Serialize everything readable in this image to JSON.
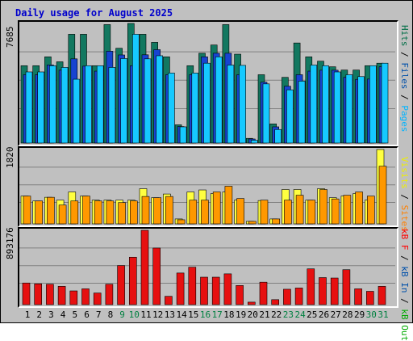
{
  "title": "Daily usage for August 2025",
  "panels": {
    "top": {
      "max_label": "7685",
      "legend": [
        {
          "text": "Hits",
          "color": "#006e46"
        },
        {
          "text": " / ",
          "color": "#000000"
        },
        {
          "text": "Files",
          "color": "#0050aa"
        },
        {
          "text": " / ",
          "color": "#000000"
        },
        {
          "text": "Pages",
          "color": "#00b4ff"
        }
      ]
    },
    "middle": {
      "max_label": "1820",
      "legend": [
        {
          "text": "Visits",
          "color": "#eeee00"
        },
        {
          "text": " / ",
          "color": "#000000"
        },
        {
          "text": "Sites",
          "color": "#ff8000"
        }
      ]
    },
    "bottom": {
      "max_label": "893176",
      "legend": [
        {
          "text": "kB F",
          "color": "#ff0000"
        },
        {
          "text": " / ",
          "color": "#000000"
        },
        {
          "text": "kB In",
          "color": "#0050aa"
        },
        {
          "text": " / ",
          "color": "#000000"
        },
        {
          "text": "kB Out",
          "color": "#00aa00"
        }
      ]
    }
  },
  "colors": {
    "hits": "#127860",
    "files": "#1744d1",
    "pages": "#16c9ff",
    "visits": "#ffff40",
    "sites": "#ff9800",
    "kbytes": "#e61010",
    "weekday_label": "#000000",
    "weekend_label": "#008040"
  },
  "chart_data": {
    "type": "bar",
    "title": "Daily usage for August 2025",
    "categories": [
      "1",
      "2",
      "3",
      "4",
      "5",
      "6",
      "7",
      "8",
      "9",
      "10",
      "11",
      "12",
      "13",
      "14",
      "15",
      "16",
      "17",
      "18",
      "19",
      "20",
      "21",
      "22",
      "23",
      "24",
      "25",
      "26",
      "27",
      "28",
      "29",
      "30",
      "31"
    ],
    "weekend_days": [
      "9",
      "10",
      "16",
      "17",
      "23",
      "24",
      "30",
      "31"
    ],
    "panels": [
      {
        "name": "hits-files-pages",
        "ylim": [
          0,
          7685
        ],
        "series": [
          {
            "name": "Hits",
            "values": [
              4970,
              4970,
              5540,
              5220,
              6990,
              6990,
              4970,
              7610,
              6090,
              7685,
              6990,
              6470,
              5540,
              1170,
              4970,
              5770,
              6300,
              7610,
              5710,
              300,
              4390,
              1230,
              4220,
              6430,
              5540,
              5260,
              4900,
              4690,
              4690,
              4970,
              5130
            ]
          },
          {
            "name": "Files",
            "values": [
              4390,
              4390,
              5020,
              4680,
              5410,
              4940,
              4620,
              5900,
              5660,
              4970,
              5670,
              6000,
              4390,
              1060,
              4390,
              5540,
              5770,
              5770,
              4390,
              260,
              3910,
              1040,
              3650,
              4390,
              4620,
              4680,
              4680,
              4220,
              4090,
              4110,
              4900
            ]
          },
          {
            "name": "Pages",
            "values": [
              4570,
              4570,
              4970,
              4860,
              4100,
              4970,
              4970,
              4860,
              5430,
              6990,
              5410,
              5610,
              4500,
              1040,
              4500,
              5130,
              5540,
              5010,
              4990,
              180,
              3800,
              870,
              3420,
              3980,
              5010,
              4970,
              4570,
              4390,
              4270,
              4970,
              5130
            ]
          }
        ]
      },
      {
        "name": "visits-sites",
        "ylim": [
          0,
          1820
        ],
        "series": [
          {
            "name": "Visits",
            "values": [
              680,
              560,
              650,
              580,
              780,
              680,
              580,
              580,
              580,
              580,
              860,
              640,
              730,
              120,
              780,
              830,
              740,
              780,
              580,
              60,
              570,
              120,
              840,
              840,
              580,
              860,
              640,
              680,
              740,
              580,
              1820
            ]
          },
          {
            "name": "Sites",
            "values": [
              680,
              560,
              650,
              460,
              560,
              680,
              560,
              560,
              520,
              560,
              670,
              640,
              670,
              100,
              580,
              580,
              780,
              920,
              620,
              60,
              580,
              120,
              580,
              700,
              580,
              840,
              610,
              700,
              780,
              680,
              1410
            ]
          }
        ]
      },
      {
        "name": "kbytes",
        "ylim": [
          0,
          893176
        ],
        "series": [
          {
            "name": "kB F",
            "values": [
              260000,
              250000,
              245000,
              220000,
              165000,
              190000,
              140000,
              245000,
              470000,
              570000,
              893176,
              680000,
              100000,
              380000,
              450000,
              330000,
              330000,
              370000,
              230000,
              30000,
              270000,
              60000,
              185000,
              200000,
              430000,
              325000,
              320000,
              420000,
              190000,
              160000,
              220000
            ]
          }
        ]
      }
    ]
  }
}
